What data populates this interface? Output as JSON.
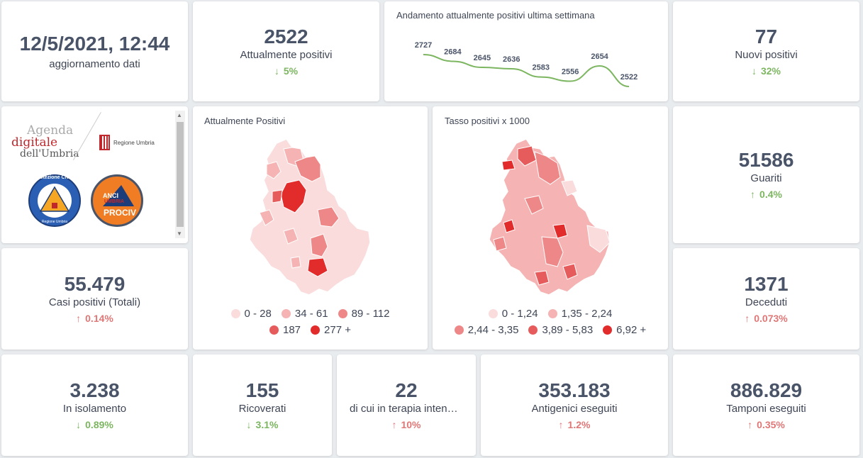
{
  "update": {
    "datetime": "12/5/2021, 12:44",
    "label": "aggiornamento dati"
  },
  "attualmente_positivi": {
    "value": "2522",
    "label": "Attualmente positivi",
    "delta": "5%",
    "direction": "down"
  },
  "trend": {
    "title": "Andamento attualmente positivi ultima settimana",
    "chart_data": {
      "type": "line",
      "title": "Andamento attualmente positivi ultima settimana",
      "values": [
        2727,
        2684,
        2645,
        2636,
        2583,
        2556,
        2654,
        2522
      ],
      "labels": [
        "2727",
        "2684",
        "2645",
        "2636",
        "2583",
        "2556",
        "2654",
        "2522"
      ],
      "color": "#7cb660"
    }
  },
  "nuovi_positivi": {
    "value": "77",
    "label": "Nuovi positivi",
    "delta": "32%",
    "direction": "down"
  },
  "logos": {
    "agenda_line1": "Agenda",
    "agenda_line2": "digitale",
    "agenda_line3": "dell'Umbria",
    "regione": "Regione Umbria",
    "protezione": "Protezione Civile",
    "protezione_sub": "Regione Umbria",
    "anci_line1": "ANCI",
    "anci_line2": "UMBRIA",
    "anci_line3": "PROCIV"
  },
  "map1": {
    "title": "Attualmente Positivi",
    "legend": [
      {
        "label": "0 - 28",
        "color": "#fadcdc"
      },
      {
        "label": "34 - 61",
        "color": "#f5b3b3"
      },
      {
        "label": "89 - 112",
        "color": "#ee8888"
      },
      {
        "label": "187",
        "color": "#e65c5c"
      },
      {
        "label": "277 +",
        "color": "#e22b2b"
      }
    ]
  },
  "map2": {
    "title": "Tasso positivi x 1000",
    "legend": [
      {
        "label": "0 - 1,24",
        "color": "#fadcdc"
      },
      {
        "label": "1,35 - 2,24",
        "color": "#f5b3b3"
      },
      {
        "label": "2,44 - 3,35",
        "color": "#ee8888"
      },
      {
        "label": "3,89 - 5,83",
        "color": "#e65c5c"
      },
      {
        "label": "6,92 +",
        "color": "#e22b2b"
      }
    ]
  },
  "guariti": {
    "value": "51586",
    "label": "Guariti",
    "delta": "0.4%",
    "direction": "up"
  },
  "casi_totali": {
    "value": "55.479",
    "label": "Casi positivi (Totali)",
    "delta": "0.14%",
    "direction": "up"
  },
  "deceduti": {
    "value": "1371",
    "label": "Deceduti",
    "delta": "0.073%",
    "direction": "up"
  },
  "isolamento": {
    "value": "3.238",
    "label": "In isolamento",
    "delta": "0.89%",
    "direction": "down"
  },
  "ricoverati": {
    "value": "155",
    "label": "Ricoverati",
    "delta": "3.1%",
    "direction": "down"
  },
  "terapia": {
    "value": "22",
    "label": "di cui in terapia intensiva",
    "delta": "10%",
    "direction": "up"
  },
  "antigenici": {
    "value": "353.183",
    "label": "Antigenici eseguiti",
    "delta": "1.2%",
    "direction": "up"
  },
  "tamponi": {
    "value": "886.829",
    "label": "Tamponi eseguiti",
    "delta": "0.35%",
    "direction": "up"
  },
  "icons": {
    "arrow_up": "arrow-up-icon",
    "arrow_down": "arrow-down-icon"
  }
}
